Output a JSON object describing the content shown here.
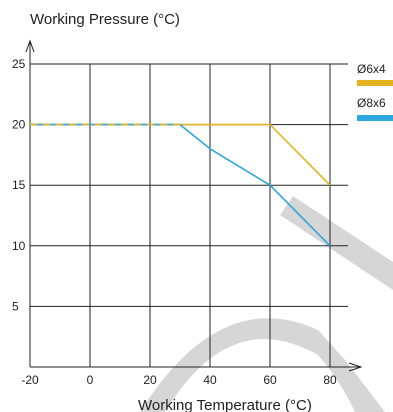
{
  "chart_data": {
    "type": "line",
    "xlabel": "Working Temperature (°C)",
    "ylabel": "Working Pressure (°C)",
    "xlim": [
      -20,
      80
    ],
    "ylim": [
      0,
      25
    ],
    "x_ticks": [
      -20,
      0,
      20,
      40,
      60,
      80
    ],
    "y_ticks": [
      5,
      10,
      15,
      20,
      25
    ],
    "x_tick_labels": [
      "-20",
      "0",
      "20",
      "40",
      "60",
      "80"
    ],
    "y_tick_labels": [
      "5",
      "10",
      "15",
      "20",
      "25"
    ],
    "grid": true,
    "legend_position": "right",
    "series": [
      {
        "name": "Ø6x4",
        "color": "#e3b41f",
        "points": [
          [
            -20,
            20
          ],
          [
            60,
            20
          ],
          [
            80,
            15
          ]
        ]
      },
      {
        "name": "Ø8x6",
        "color": "#2ea6df",
        "points": [
          [
            -20,
            20
          ],
          [
            30,
            20
          ],
          [
            40,
            18
          ],
          [
            60,
            15
          ],
          [
            80,
            10
          ]
        ]
      }
    ]
  },
  "colors": {
    "axis": "#222222",
    "grid": "#222222",
    "watermark": "#d4d4d4"
  }
}
